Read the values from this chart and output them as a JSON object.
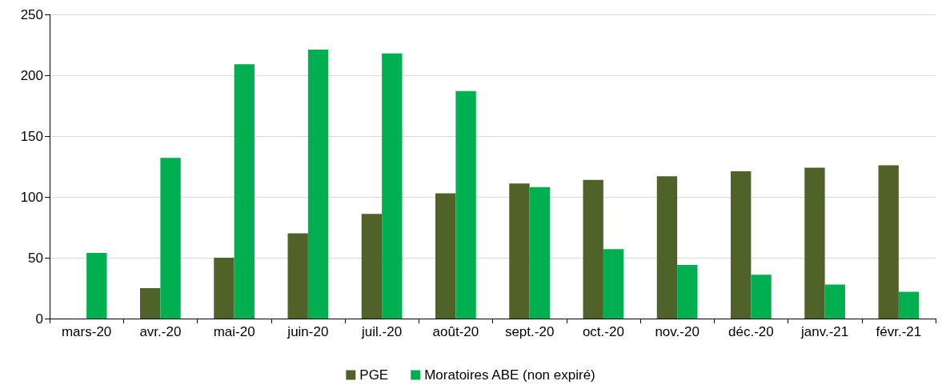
{
  "chart_data": {
    "type": "bar",
    "categories": [
      "mars-20",
      "avr.-20",
      "mai-20",
      "juin-20",
      "juil.-20",
      "août-20",
      "sept.-20",
      "oct.-20",
      "nov.-20",
      "déc.-20",
      "janv.-21",
      "févr.-21"
    ],
    "series": [
      {
        "name": "PGE",
        "color": "#4f6228",
        "values": [
          null,
          25,
          50,
          70,
          86,
          103,
          111,
          114,
          117,
          121,
          124,
          126
        ]
      },
      {
        "name": "Moratoires ABE (non expiré)",
        "color": "#00b050",
        "values": [
          54,
          132,
          209,
          221,
          218,
          187,
          108,
          57,
          44,
          36,
          28,
          22
        ]
      }
    ],
    "ylim": [
      0,
      250
    ],
    "yticks": [
      0,
      50,
      100,
      150,
      200,
      250
    ],
    "grid": "y",
    "legend": "bottom"
  }
}
